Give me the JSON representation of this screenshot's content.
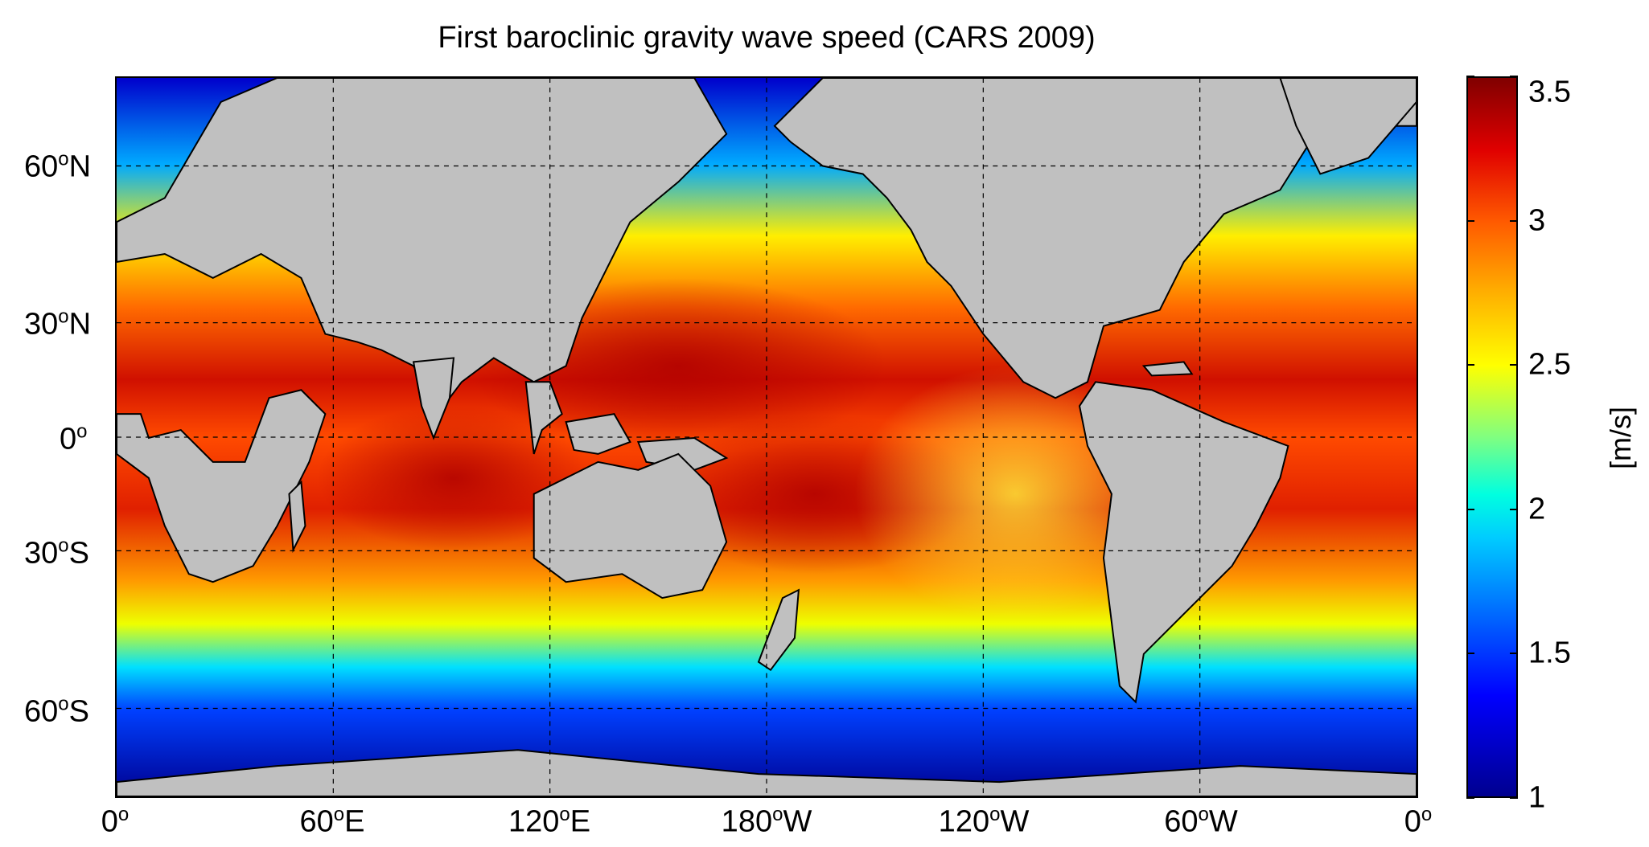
{
  "title": "First baroclinic gravity wave speed (CARS 2009)",
  "x_ticks": [
    {
      "deg": "0",
      "hemi": ""
    },
    {
      "deg": "60",
      "hemi": "E"
    },
    {
      "deg": "120",
      "hemi": "E"
    },
    {
      "deg": "180",
      "hemi": "W"
    },
    {
      "deg": "120",
      "hemi": "W"
    },
    {
      "deg": "60",
      "hemi": "W"
    },
    {
      "deg": "0",
      "hemi": ""
    }
  ],
  "y_ticks": [
    {
      "deg": "60",
      "hemi": "N"
    },
    {
      "deg": "30",
      "hemi": "N"
    },
    {
      "deg": "0",
      "hemi": ""
    },
    {
      "deg": "30",
      "hemi": "S"
    },
    {
      "deg": "60",
      "hemi": "S"
    }
  ],
  "colorbar": {
    "unit": "[m/s]",
    "ticks": [
      "1",
      "1.5",
      "2",
      "2.5",
      "3",
      "3.5"
    ],
    "min": 1,
    "max": 3.5
  },
  "colors": {
    "land": "#c0c0c0",
    "ocean_cold": "#00008f",
    "ocean_hot": "#800000"
  }
}
